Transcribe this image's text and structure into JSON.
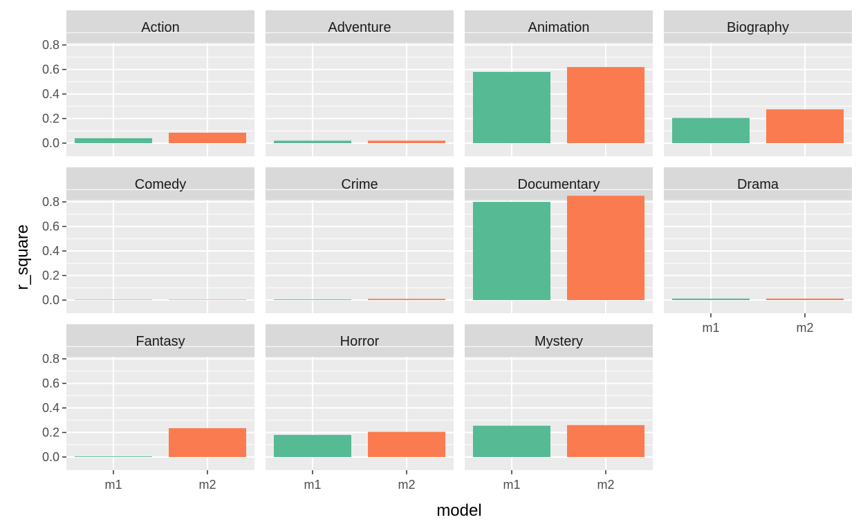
{
  "chart_data": {
    "type": "bar",
    "layout": "facet-wrap",
    "facet_columns": 4,
    "xlabel": "model",
    "ylabel": "r_square",
    "categories": [
      "m1",
      "m2"
    ],
    "ylim": [
      0,
      0.85
    ],
    "yticks": [
      0.0,
      0.2,
      0.4,
      0.6,
      0.8
    ],
    "ytick_labels": [
      "0.0",
      "0.2",
      "0.4",
      "0.6",
      "0.8"
    ],
    "grid": true,
    "legend": "none",
    "colors": {
      "m1": "#56BA95",
      "m2": "#FA7B50"
    },
    "panel_background": "#EBEBEB",
    "strip_background": "#D9D9D9",
    "facets": [
      {
        "name": "Action",
        "values": [
          0.04,
          0.085
        ]
      },
      {
        "name": "Adventure",
        "values": [
          0.02,
          0.02
        ]
      },
      {
        "name": "Animation",
        "values": [
          0.58,
          0.62
        ]
      },
      {
        "name": "Biography",
        "values": [
          0.205,
          0.275
        ]
      },
      {
        "name": "Comedy",
        "values": [
          0.001,
          0.002
        ]
      },
      {
        "name": "Crime",
        "values": [
          0.005,
          0.01
        ]
      },
      {
        "name": "Documentary",
        "values": [
          0.8,
          0.85
        ]
      },
      {
        "name": "Drama",
        "values": [
          0.012,
          0.012
        ]
      },
      {
        "name": "Fantasy",
        "values": [
          0.005,
          0.235
        ]
      },
      {
        "name": "Horror",
        "values": [
          0.18,
          0.205
        ]
      },
      {
        "name": "Mystery",
        "values": [
          0.255,
          0.26
        ]
      }
    ]
  }
}
